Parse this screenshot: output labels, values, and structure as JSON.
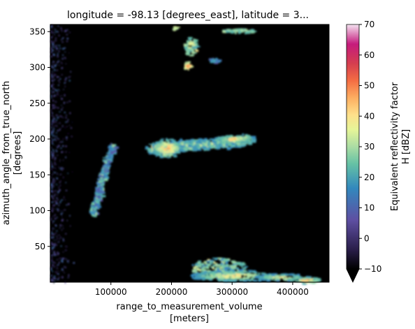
{
  "chart_data": {
    "type": "heatmap",
    "title": "longitude = -98.13 [degrees_east], latitude = 3...",
    "xlabel": "range_to_measurement_volume",
    "xlabel_units": "[meters]",
    "ylabel": "azimuth_angle_from_true_north",
    "ylabel_units": "[degrees]",
    "xlim": [
      0,
      460000
    ],
    "ylim": [
      0,
      360
    ],
    "xticks": [
      100000,
      200000,
      300000,
      400000
    ],
    "xtick_labels": [
      "100000",
      "200000",
      "300000",
      "400000"
    ],
    "yticks": [
      50,
      100,
      150,
      200,
      250,
      300,
      350
    ],
    "ytick_labels": [
      "50",
      "100",
      "150",
      "200",
      "250",
      "300",
      "350"
    ],
    "colorbar": {
      "label": "Equivalent reflectivity factor",
      "label_units": "H [dBZ]",
      "vmin": -10,
      "vmax": 70,
      "ticks": [
        -10,
        0,
        10,
        20,
        30,
        40,
        50,
        60,
        70
      ],
      "tick_labels": [
        "−10",
        "0",
        "10",
        "20",
        "30",
        "40",
        "50",
        "60",
        "70"
      ],
      "colormap": "Spectral_r",
      "extend": "min"
    },
    "background_color": "#000000",
    "echo_regions": [
      {
        "x": [
          210000,
          460000
        ],
        "y": [
          0,
          40
        ],
        "dbz_range": [
          10,
          50
        ]
      },
      {
        "x": [
          170000,
          330000
        ],
        "y": [
          165,
          215
        ],
        "dbz_range": [
          15,
          55
        ]
      },
      {
        "x": [
          60000,
          110000
        ],
        "y": [
          95,
          195
        ],
        "dbz_range": [
          5,
          30
        ]
      },
      {
        "x": [
          200000,
          260000
        ],
        "y": [
          285,
          340
        ],
        "dbz_range": [
          20,
          50
        ]
      },
      {
        "x": [
          250000,
          290000
        ],
        "y": [
          285,
          320
        ],
        "dbz_range": [
          5,
          25
        ]
      },
      {
        "x": [
          260000,
          360000
        ],
        "y": [
          345,
          360
        ],
        "dbz_range": [
          15,
          35
        ]
      },
      {
        "x": [
          0,
          40000
        ],
        "y": [
          0,
          360
        ],
        "dbz_range": [
          -10,
          15
        ]
      }
    ]
  }
}
